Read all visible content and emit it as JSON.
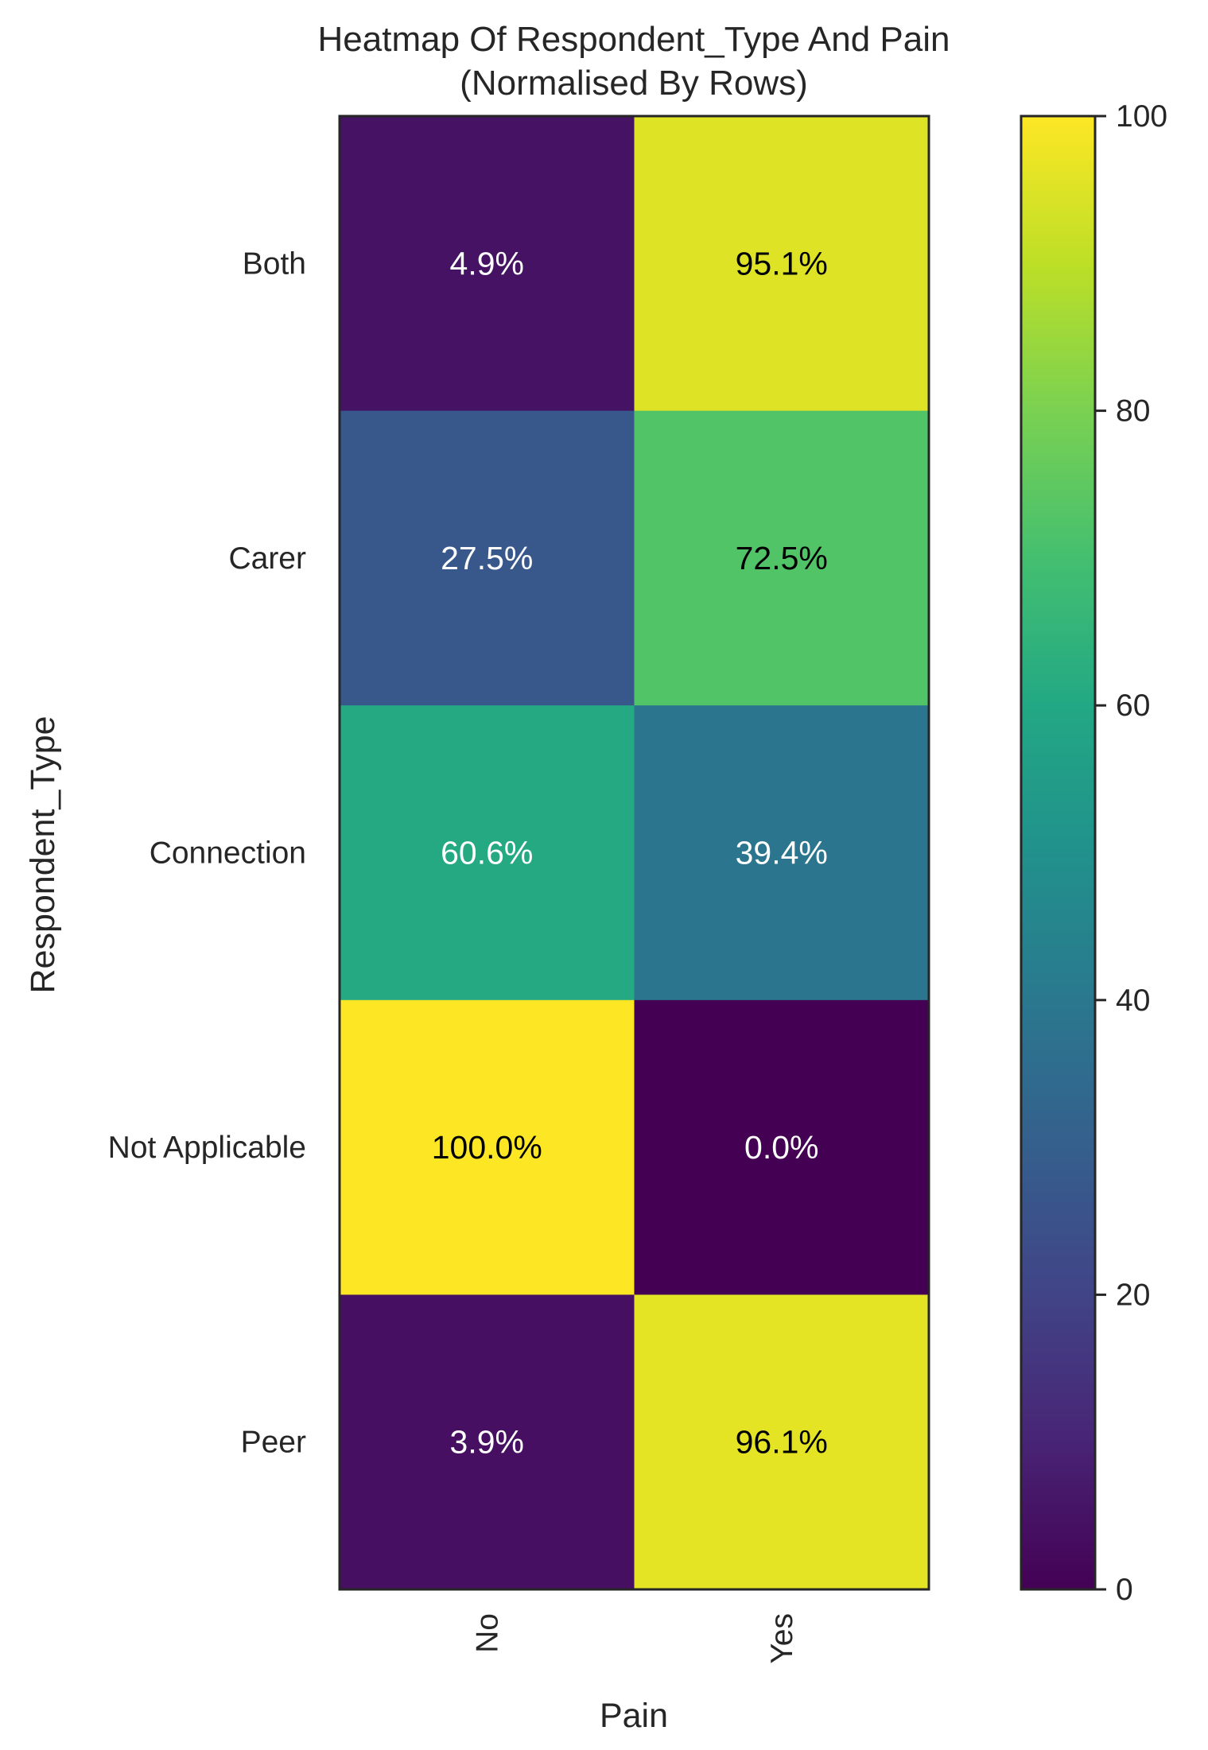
{
  "chart_data": {
    "type": "heatmap",
    "title": "Heatmap Of Respondent_Type And Pain",
    "subtitle": "(Normalised By Rows)",
    "xlabel": "Pain",
    "ylabel": "Respondent_Type",
    "x_categories": [
      "No",
      "Yes"
    ],
    "y_categories": [
      "Both",
      "Carer",
      "Connection",
      "Not Applicable",
      "Peer"
    ],
    "values": [
      [
        4.9,
        95.1
      ],
      [
        27.5,
        72.5
      ],
      [
        60.6,
        39.4
      ],
      [
        100.0,
        0.0
      ],
      [
        3.9,
        96.1
      ]
    ],
    "cell_labels": [
      [
        "4.9%",
        "95.1%"
      ],
      [
        "27.5%",
        "72.5%"
      ],
      [
        "60.6%",
        "39.4%"
      ],
      [
        "100.0%",
        "0.0%"
      ],
      [
        "3.9%",
        "96.1%"
      ]
    ],
    "colormap": "viridis",
    "colorbar": {
      "range": [
        0,
        100
      ],
      "ticks": [
        0,
        20,
        40,
        60,
        80,
        100
      ]
    },
    "colors": {
      "low": "#440154",
      "high": "#fde725"
    }
  }
}
